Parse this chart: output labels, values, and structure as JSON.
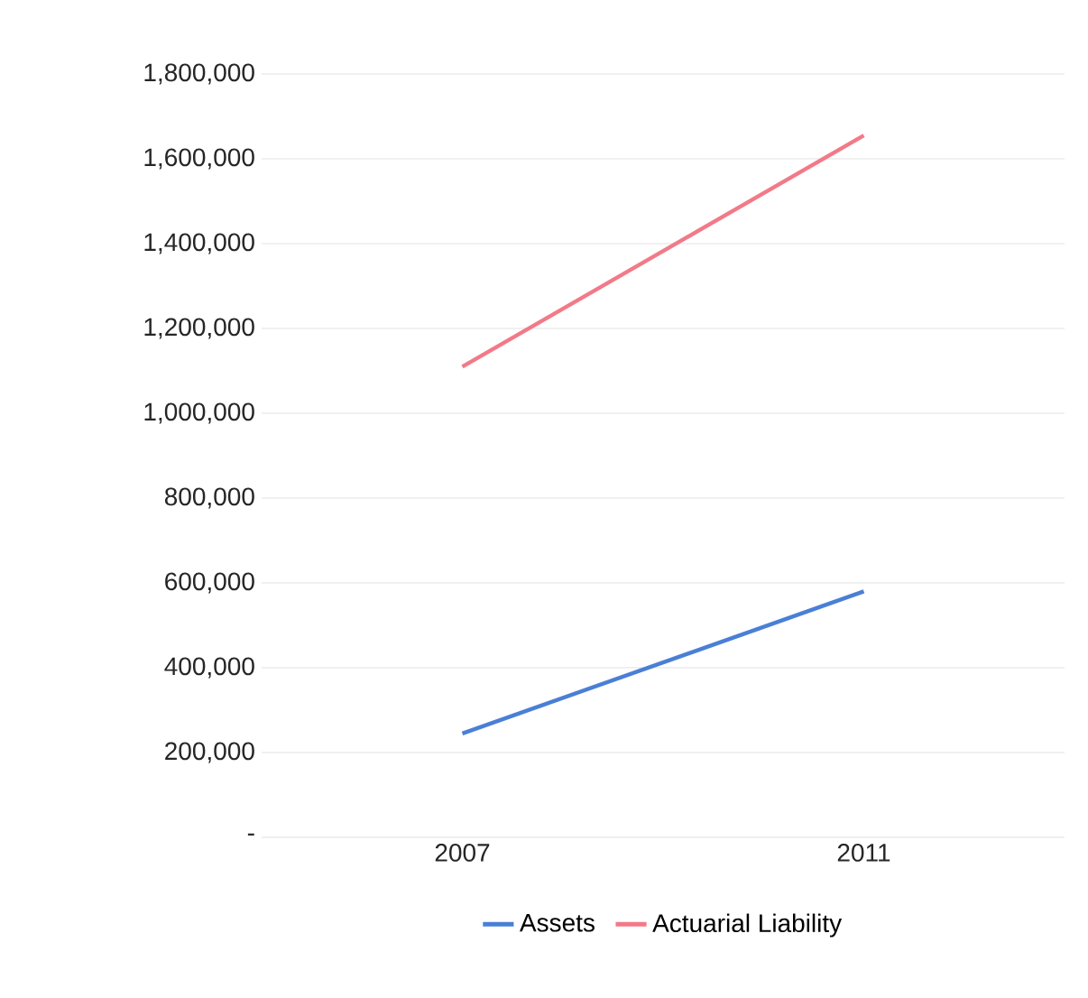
{
  "chart_data": {
    "type": "line",
    "categories": [
      "2007",
      "2011"
    ],
    "series": [
      {
        "name": "Assets",
        "color": "#4a7fd6",
        "values": [
          245000,
          580000
        ]
      },
      {
        "name": "Actuarial Liability",
        "color": "#f27a88",
        "values": [
          1110000,
          1655000
        ]
      }
    ],
    "ylim": [
      0,
      1800000
    ],
    "yticks": [
      {
        "value": 0,
        "label": "-"
      },
      {
        "value": 200000,
        "label": "200,000"
      },
      {
        "value": 400000,
        "label": "400,000"
      },
      {
        "value": 600000,
        "label": "600,000"
      },
      {
        "value": 800000,
        "label": "800,000"
      },
      {
        "value": 1000000,
        "label": "1,000,000"
      },
      {
        "value": 1200000,
        "label": "1,200,000"
      },
      {
        "value": 1400000,
        "label": "1,400,000"
      },
      {
        "value": 1600000,
        "label": "1,600,000"
      },
      {
        "value": 1800000,
        "label": "1,800,000"
      }
    ],
    "grid": "y",
    "legend": "bottom",
    "marker": "none",
    "line_style": "solid"
  }
}
